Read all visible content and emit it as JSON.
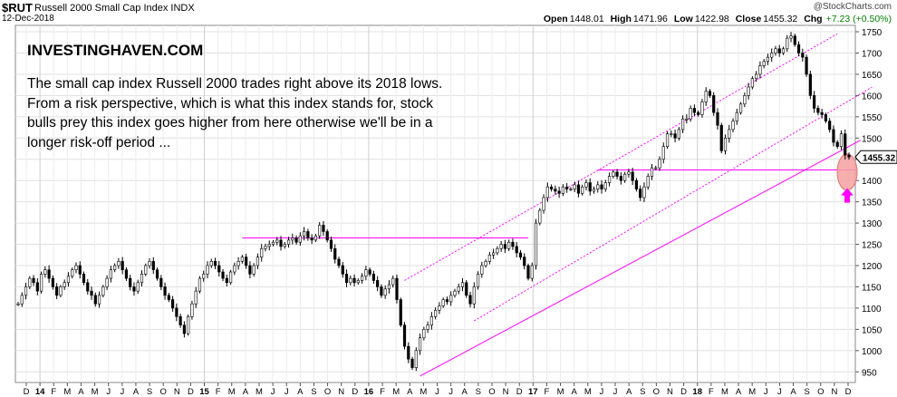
{
  "header": {
    "symbol": "$RUT",
    "description": "Russell 2000 Small Cap Index  INDX",
    "date": "12-Dec-2018",
    "brand": "@StockCharts.com",
    "open_label": "Open",
    "open_value": "1448.01",
    "high_label": "High",
    "high_value": "1471.96",
    "low_label": "Low",
    "low_value": "1422.98",
    "close_label": "Close",
    "close_value": "1455.32",
    "chg_label": "Chg",
    "chg_value": "+7.23 (+0.50%)",
    "chg_color": "#008000"
  },
  "annotation": {
    "headline": "INVESTINGHAVEN.COM",
    "body": "The small cap index Russell 2000 trades right above its 2018 lows. From a risk perspective, which is what this index stands for, stock bulls prey this index goes higher from here otherwise we'll be in a longer risk-off period ..."
  },
  "chart_data": {
    "type": "line",
    "title": "Russell 2000 Small Cap Index",
    "x_ticks": [
      "D",
      "14",
      "F",
      "M",
      "A",
      "M",
      "J",
      "J",
      "A",
      "S",
      "O",
      "N",
      "D",
      "15",
      "F",
      "M",
      "A",
      "M",
      "J",
      "J",
      "A",
      "S",
      "O",
      "N",
      "D",
      "16",
      "F",
      "M",
      "A",
      "M",
      "J",
      "J",
      "A",
      "S",
      "O",
      "N",
      "D",
      "17",
      "F",
      "M",
      "A",
      "M",
      "J",
      "J",
      "A",
      "S",
      "O",
      "N",
      "D",
      "18",
      "F",
      "M",
      "A",
      "M",
      "J",
      "J",
      "A",
      "S",
      "O",
      "N",
      "D"
    ],
    "y_ticks": [
      950,
      1000,
      1050,
      1100,
      1150,
      1200,
      1250,
      1300,
      1350,
      1400,
      1450,
      1500,
      1550,
      1600,
      1650,
      1700,
      1750
    ],
    "ylim": [
      925,
      1765
    ],
    "last_value_label": "1455.32",
    "series": [
      {
        "values": [
          1110,
          1130,
          1150,
          1170,
          1160,
          1140,
          1180,
          1190,
          1170,
          1150,
          1130,
          1150,
          1160,
          1175,
          1190,
          1200,
          1180,
          1160,
          1140,
          1130,
          1110,
          1130,
          1150,
          1170,
          1190,
          1200,
          1210,
          1190,
          1170,
          1150,
          1140,
          1160,
          1180,
          1200,
          1210,
          1190,
          1170,
          1150,
          1130,
          1120,
          1100,
          1080,
          1060,
          1040,
          1080,
          1110,
          1140,
          1170,
          1180,
          1200,
          1210,
          1200,
          1185,
          1170,
          1160,
          1185,
          1200,
          1210,
          1220,
          1200,
          1180,
          1200,
          1220,
          1240,
          1245,
          1250,
          1255,
          1260,
          1245,
          1250,
          1260,
          1265,
          1255,
          1270,
          1280,
          1265,
          1260,
          1270,
          1295,
          1280,
          1260,
          1240,
          1215,
          1200,
          1180,
          1160,
          1170,
          1160,
          1165,
          1175,
          1190,
          1180,
          1165,
          1150,
          1130,
          1145,
          1155,
          1170,
          1120,
          1060,
          1010,
          980,
          960,
          1000,
          1030,
          1050,
          1060,
          1080,
          1095,
          1105,
          1120,
          1115,
          1130,
          1140,
          1150,
          1160,
          1130,
          1110,
          1150,
          1180,
          1200,
          1210,
          1225,
          1230,
          1240,
          1250,
          1240,
          1255,
          1245,
          1230,
          1220,
          1200,
          1170,
          1200,
          1300,
          1330,
          1360,
          1385,
          1380,
          1375,
          1370,
          1385,
          1380,
          1380,
          1390,
          1370,
          1385,
          1395,
          1375,
          1380,
          1390,
          1380,
          1395,
          1410,
          1420,
          1410,
          1400,
          1415,
          1420,
          1400,
          1380,
          1360,
          1385,
          1410,
          1430,
          1430,
          1450,
          1480,
          1510,
          1510,
          1500,
          1520,
          1545,
          1545,
          1570,
          1560,
          1555,
          1585,
          1610,
          1600,
          1560,
          1530,
          1470,
          1500,
          1520,
          1540,
          1560,
          1580,
          1600,
          1620,
          1640,
          1650,
          1670,
          1680,
          1690,
          1700,
          1710,
          1700,
          1710,
          1735,
          1740,
          1720,
          1700,
          1690,
          1650,
          1600,
          1570,
          1560,
          1555,
          1540,
          1520,
          1490,
          1480,
          1510,
          1460,
          1455.32
        ]
      }
    ],
    "horizontal_lines": [
      1265,
      1425
    ],
    "channel": [
      {
        "name": "upper",
        "from": {
          "i": 100,
          "v": 1165
        },
        "to": {
          "i": 212,
          "v": 1745
        }
      },
      {
        "name": "lower",
        "from": {
          "i": 118,
          "v": 1070
        },
        "to": {
          "i": 221,
          "v": 1620
        }
      },
      {
        "name": "support",
        "from": {
          "i": 104,
          "v": 940
        },
        "to": {
          "i": 218,
          "v": 1495
        }
      }
    ],
    "line_color": "#ff00ff",
    "grid": true,
    "grid_color": "#e0e0e0",
    "candle_color": "#000000",
    "highlight_color": "#f4a0a0",
    "arrow_color": "#ff00ff"
  }
}
